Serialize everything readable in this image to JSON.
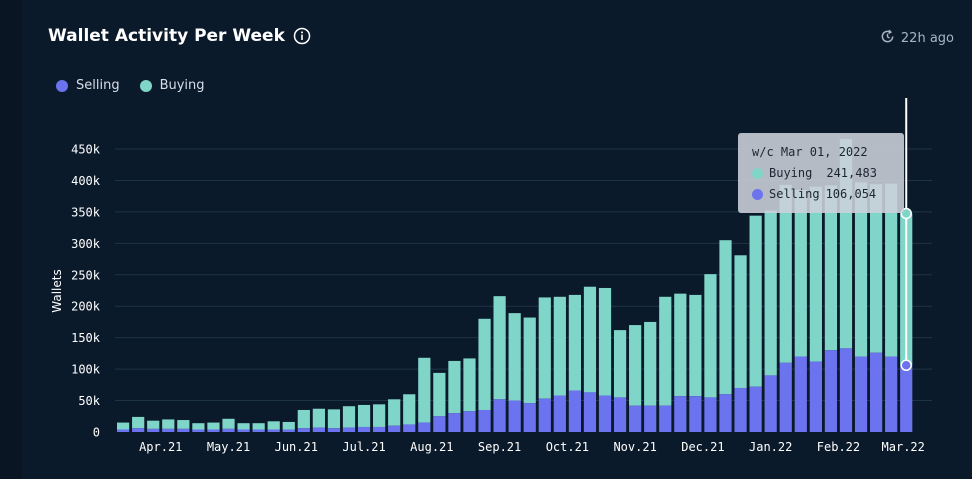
{
  "header": {
    "title": "Wallet Activity Per Week",
    "info_icon": "info-icon",
    "updated_icon": "refresh-clock-icon",
    "updated_text": "22h ago"
  },
  "legend": {
    "selling_label": "Selling",
    "buying_label": "Buying"
  },
  "colors": {
    "background": "#0b1a2b",
    "selling": "#6b73ee",
    "buying": "#7fd6c8",
    "grid": "#1f3346",
    "tick_text": "#ffffff"
  },
  "tooltip": {
    "heading": "w/c Mar 01, 2022",
    "buying_label": "Buying",
    "buying_value": "241,483",
    "selling_label": "Selling",
    "selling_value": "106,054"
  },
  "chart_data": {
    "type": "bar",
    "stacked": true,
    "ylabel": "Wallets",
    "ylim": [
      0,
      450000
    ],
    "yticks": [
      0,
      50000,
      100000,
      150000,
      200000,
      250000,
      300000,
      350000,
      400000,
      450000
    ],
    "ytick_labels": [
      "0",
      "50k",
      "100k",
      "150k",
      "200k",
      "250k",
      "300k",
      "350k",
      "400k",
      "450k"
    ],
    "xtick_labels": [
      {
        "label": "Apr.21",
        "week_index": 2.5
      },
      {
        "label": "May.21",
        "week_index": 7
      },
      {
        "label": "Jun.21",
        "week_index": 11.5
      },
      {
        "label": "Jul.21",
        "week_index": 16
      },
      {
        "label": "Aug.21",
        "week_index": 20.5
      },
      {
        "label": "Sep.21",
        "week_index": 25
      },
      {
        "label": "Oct.21",
        "week_index": 29.5
      },
      {
        "label": "Nov.21",
        "week_index": 34
      },
      {
        "label": "Dec.21",
        "week_index": 38.5
      },
      {
        "label": "Jan.22",
        "week_index": 43
      },
      {
        "label": "Feb.22",
        "week_index": 47.5
      },
      {
        "label": "Mar.22",
        "week_index": 51.8
      }
    ],
    "grid": true,
    "legend_position": "top-left",
    "highlighted_week_index": 52,
    "series": [
      {
        "name": "Selling",
        "values": [
          4000,
          6000,
          5000,
          5000,
          5000,
          4000,
          4000,
          5000,
          4000,
          4000,
          4000,
          4000,
          6000,
          7000,
          6000,
          7000,
          8000,
          8000,
          10000,
          12000,
          15000,
          25000,
          30000,
          33000,
          35000,
          52000,
          50000,
          46000,
          53000,
          58000,
          66000,
          63000,
          58000,
          55000,
          42000,
          42000,
          42000,
          57000,
          57000,
          55000,
          60000,
          70000,
          72000,
          90000,
          110000,
          120000,
          112000,
          130000,
          133000,
          120000,
          126000,
          120000,
          106054
        ]
      },
      {
        "name": "Buying",
        "values": [
          11000,
          18000,
          13000,
          15000,
          14000,
          10000,
          11000,
          16000,
          10000,
          10000,
          13000,
          12000,
          29000,
          30000,
          30000,
          34000,
          35000,
          36000,
          42000,
          48000,
          103000,
          69000,
          83000,
          84000,
          145000,
          164000,
          139000,
          136000,
          161000,
          157000,
          152000,
          168000,
          171000,
          107000,
          128000,
          133000,
          173000,
          163000,
          161000,
          196000,
          245000,
          211000,
          272000,
          262000,
          283000,
          265000,
          278000,
          262000,
          333000,
          277000,
          268000,
          275000,
          241483
        ]
      }
    ]
  }
}
